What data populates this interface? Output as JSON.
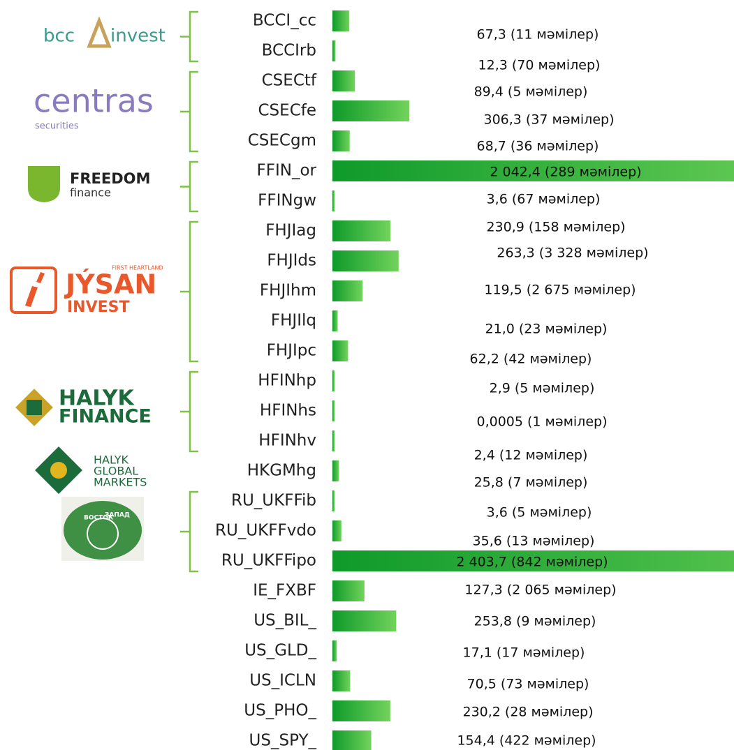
{
  "chart_data": {
    "type": "bar",
    "orientation": "horizontal",
    "color": "#0e9a2a",
    "categories": [
      "BCCI_cc",
      "BCCIrb",
      "CSECtf",
      "CSECfe",
      "CSECgm",
      "FFIN_or",
      "FFINgw",
      "FHJIag",
      "FHJIds",
      "FHJIhm",
      "FHJIlq",
      "FHJIpc",
      "HFINhp",
      "HFINhs",
      "HFINhv",
      "HKGMhg",
      "RU_UKFFib",
      "RU_UKFFvdo",
      "RU_UKFFipo",
      "IE_FXBF",
      "US_BIL_",
      "US_GLD_",
      "US_ICLN",
      "US_PHO_",
      "US_SPY_"
    ],
    "values": [
      67.3,
      12.3,
      89.4,
      306.3,
      68.7,
      2042.4,
      3.6,
      230.9,
      263.3,
      119.5,
      21.0,
      62.2,
      2.9,
      0.0005,
      2.4,
      25.8,
      3.6,
      35.6,
      2403.7,
      127.3,
      253.8,
      17.1,
      70.5,
      230.2,
      154.4
    ],
    "value_labels": [
      "67,3 (11  мәмілер)",
      "12,3 (70  мәмілер)",
      "89,4 (5  мәмілер)",
      "306,3 (37  мәмілер)",
      "68,7 (36  мәмілер)",
      "2 042,4 (289  мәмілер)",
      "3,6 (67  мәмілер)",
      "230,9 (158 мәмілер)",
      "263,3 (3 328 мәмілер)",
      "119,5 (2 675 мәмілер)",
      "21,0 (23 мәмілер)",
      "62,2 (42 мәмілер)",
      "2,9 (5 мәмілер)",
      "0,0005 (1 мәмілер)",
      "2,4 (12 мәмілер)",
      "25,8 (7 мәмілер)",
      "3,6 (5 мәмілер)",
      "35,6 (13 мәмілер)",
      "2 403,7 (842 мәмілер)",
      "127,3 (2 065 мәмілер)",
      "253,8 (9 мәмілер)",
      "17,1 (17 мәмілер)",
      "70,5 (73 мәмілер)",
      "230,2 (28 мәмілер)",
      "154,4 (422 мәмілер)"
    ],
    "logos": [
      [
        "bcc",
        "invest"
      ],
      [
        "centras",
        "securities"
      ],
      [
        "FREEDOM",
        "finance"
      ],
      [
        "FIRST HEARTLAND",
        "JÝSAN",
        "INVEST"
      ],
      [
        "HALYK",
        "FINANCE"
      ],
      [
        "HALYK",
        "GLOBAL",
        "MARKETS"
      ],
      [
        "ВОСТОК",
        "ЗАПАД"
      ]
    ]
  }
}
